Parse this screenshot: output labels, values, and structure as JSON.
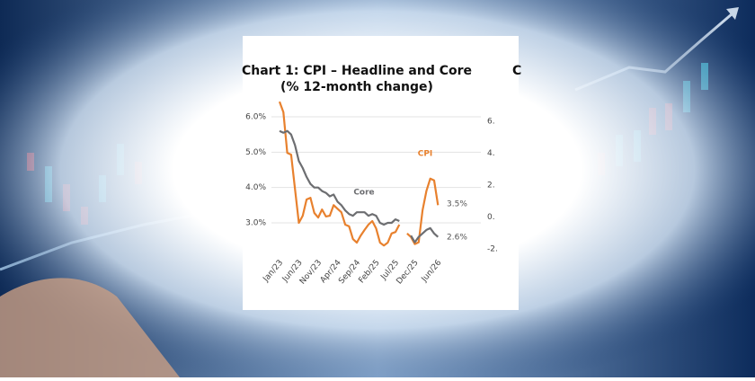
{
  "chart_data": [
    {
      "type": "line",
      "title": "Chart 1: CPI – Headline and Core",
      "subtitle": "(% 12-month change)",
      "categories": [
        "Jan/23",
        null,
        null,
        null,
        null,
        "Jun/23",
        null,
        null,
        null,
        null,
        "Nov/23",
        null,
        null,
        null,
        null,
        "Apr/24",
        null,
        null,
        null,
        null,
        "Sep/24",
        null,
        null,
        null,
        null,
        "Feb/25",
        null,
        null,
        null,
        null,
        "Jul/25",
        null,
        null,
        null,
        null,
        "Dec/25",
        null,
        null,
        null,
        null,
        null,
        "Jun/26"
      ],
      "series": [
        {
          "name": "CPI",
          "color": "#e8812e",
          "values": [
            6.43,
            6.13,
            4.98,
            4.93,
            3.96,
            3.0,
            3.2,
            3.66,
            3.71,
            3.28,
            3.15,
            3.38,
            3.18,
            3.2,
            3.5,
            3.4,
            3.3,
            2.95,
            2.9,
            2.54,
            2.44,
            2.64,
            2.8,
            2.95,
            3.05,
            2.84,
            2.44,
            2.36,
            2.44,
            2.7,
            2.74,
            2.95,
            null,
            2.7,
            2.6,
            2.4,
            2.45,
            3.35,
            3.9,
            4.25,
            4.2,
            3.5
          ]
        },
        {
          "name": "Core",
          "color": "#6d6e71",
          "values": [
            5.6,
            5.55,
            5.6,
            5.5,
            5.2,
            4.75,
            4.55,
            4.3,
            4.1,
            4.0,
            4.0,
            3.9,
            3.85,
            3.75,
            3.8,
            3.6,
            3.5,
            3.35,
            3.25,
            3.2,
            3.3,
            3.3,
            3.3,
            3.2,
            3.25,
            3.2,
            3.0,
            2.95,
            3.0,
            3.0,
            3.1,
            3.05,
            null,
            null,
            2.64,
            2.45,
            2.6,
            2.7,
            2.8,
            2.85,
            2.7,
            2.6
          ]
        }
      ],
      "annotations": [
        "CPI",
        "Core",
        "3.5%",
        "2.6%"
      ],
      "ylim": [
        2.2,
        6.6
      ],
      "yticks": [
        {
          "value": 3,
          "label": "3.0%"
        },
        {
          "value": 4,
          "label": "4.0%"
        },
        {
          "value": 5,
          "label": "5.0%"
        },
        {
          "value": 6,
          "label": "6.0%"
        }
      ],
      "grid": true
    },
    {
      "type": "line",
      "title": "C",
      "ylim": [
        -2.5,
        6.5
      ],
      "yticks": [
        {
          "value": 6,
          "label": "6."
        },
        {
          "value": 4,
          "label": "4."
        },
        {
          "value": 2,
          "label": "2."
        },
        {
          "value": 0,
          "label": "0."
        },
        {
          "value": -2,
          "label": "-2."
        }
      ]
    }
  ]
}
